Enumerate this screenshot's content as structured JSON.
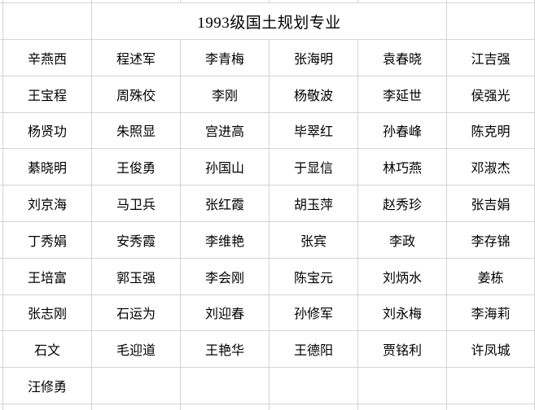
{
  "table": {
    "title": "1993级国土规划专业",
    "column_count": 6,
    "row_count": 10,
    "rows": [
      [
        "辛燕西",
        "程述军",
        "李青梅",
        "张海明",
        "袁春晓",
        "江吉强"
      ],
      [
        "王宝程",
        "周殊佼",
        "李刚",
        "杨敬波",
        "李延世",
        "侯强光"
      ],
      [
        "杨贤功",
        "朱照显",
        "宫进高",
        "毕翠红",
        "孙春峰",
        "陈克明"
      ],
      [
        "綦晓明",
        "王俊勇",
        "孙国山",
        "于显信",
        "林巧燕",
        "邓淑杰"
      ],
      [
        "刘京海",
        "马卫兵",
        "张红霞",
        "胡玉萍",
        "赵秀珍",
        "张吉娟"
      ],
      [
        "丁秀娟",
        "安秀霞",
        "李维艳",
        "张宾",
        "李政",
        "李存锦"
      ],
      [
        "王培富",
        "郭玉强",
        "李会刚",
        "陈宝元",
        "刘炳水",
        "姜栋"
      ],
      [
        "张志刚",
        "石运为",
        "刘迎春",
        "孙修军",
        "刘永梅",
        "李海莉"
      ],
      [
        "石文",
        "毛迎道",
        "王艳华",
        "王德阳",
        "贾铭利",
        "许凤城"
      ],
      [
        "汪修勇",
        "",
        "",
        "",
        "",
        ""
      ]
    ]
  },
  "colors": {
    "gridline": "#d4d4d4",
    "background": "#ffffff",
    "text": "#000000"
  }
}
